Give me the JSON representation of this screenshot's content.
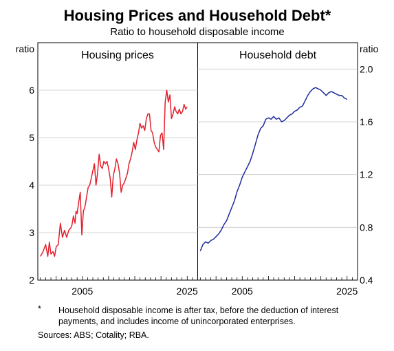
{
  "title": "Housing Prices and Household Debt*",
  "subtitle": "Ratio to household disposable income",
  "footnote_marker": "*",
  "footnote": "Household disposable income is after tax, before the deduction of interest payments, and includes income of unincorporated enterprises.",
  "sources": "Sources: ABS; Cotality; RBA.",
  "chart_data": [
    {
      "type": "line",
      "title": "Housing prices",
      "ylabel": "ratio",
      "ylim": [
        2,
        7
      ],
      "yticks": [
        2,
        3,
        4,
        5,
        6
      ],
      "xlim": [
        1996.5,
        2027.0
      ],
      "xticks": [
        2005,
        2025
      ],
      "color": "#e3202c",
      "x": [
        1997.0,
        1997.5,
        1998.0,
        1998.4,
        1998.7,
        1999.0,
        1999.4,
        1999.7,
        2000.0,
        2000.4,
        2000.8,
        2001.2,
        2001.6,
        2002.0,
        2002.4,
        2002.8,
        2003.0,
        2003.3,
        2003.6,
        2003.8,
        2004.0,
        2004.3,
        2004.6,
        2004.9,
        2005.2,
        2005.5,
        2005.8,
        2006.1,
        2006.4,
        2006.7,
        2007.0,
        2007.3,
        2007.6,
        2007.9,
        2008.2,
        2008.5,
        2008.8,
        2009.1,
        2009.4,
        2009.7,
        2010.0,
        2010.3,
        2010.6,
        2010.9,
        2011.2,
        2011.5,
        2011.8,
        2012.1,
        2012.4,
        2012.7,
        2013.0,
        2013.3,
        2013.6,
        2013.9,
        2014.2,
        2014.5,
        2014.8,
        2015.1,
        2015.4,
        2015.7,
        2016.0,
        2016.3,
        2016.6,
        2016.9,
        2017.2,
        2017.5,
        2017.8,
        2018.1,
        2018.4,
        2018.7,
        2019.0,
        2019.3,
        2019.6,
        2019.9,
        2020.2,
        2020.5,
        2020.8,
        2021.1,
        2021.4,
        2021.7,
        2022.0,
        2022.3,
        2022.6,
        2022.9,
        2023.2,
        2023.5,
        2023.8,
        2024.1,
        2024.4,
        2024.7,
        2025.0
      ],
      "values": [
        2.5,
        2.6,
        2.75,
        2.5,
        2.8,
        2.55,
        2.6,
        2.5,
        2.7,
        2.75,
        3.2,
        2.9,
        3.05,
        2.9,
        3.05,
        3.1,
        3.15,
        3.35,
        3.2,
        3.45,
        3.4,
        3.65,
        3.85,
        2.95,
        3.45,
        3.55,
        3.75,
        3.95,
        4.0,
        4.15,
        4.3,
        4.45,
        4.0,
        4.25,
        4.65,
        4.4,
        4.35,
        4.5,
        4.45,
        4.5,
        4.35,
        4.15,
        3.75,
        4.2,
        4.35,
        4.55,
        4.45,
        4.25,
        3.85,
        4.0,
        4.05,
        4.15,
        4.25,
        4.45,
        4.55,
        4.7,
        4.9,
        4.75,
        4.95,
        5.1,
        5.3,
        5.2,
        5.25,
        5.15,
        5.4,
        5.5,
        5.5,
        5.15,
        5.1,
        4.9,
        4.8,
        4.75,
        4.7,
        5.05,
        5.1,
        4.75,
        5.75,
        6.0,
        5.75,
        5.9,
        5.4,
        5.5,
        5.65,
        5.55,
        5.5,
        5.6,
        5.5,
        5.55,
        5.7,
        5.6,
        5.65
      ]
    },
    {
      "type": "line",
      "title": "Household debt",
      "ylabel": "ratio",
      "ylim": [
        0.4,
        2.2
      ],
      "yticks": [
        0.4,
        0.8,
        1.2,
        1.6,
        2.0
      ],
      "xlim": [
        1996.5,
        2027.0
      ],
      "xticks": [
        2005,
        2025
      ],
      "color": "#1c2d9c",
      "x": [
        1997.0,
        1997.5,
        1998.0,
        1998.5,
        1999.0,
        1999.5,
        2000.0,
        2000.5,
        2001.0,
        2001.5,
        2002.0,
        2002.5,
        2003.0,
        2003.5,
        2004.0,
        2004.5,
        2005.0,
        2005.5,
        2006.0,
        2006.5,
        2007.0,
        2007.5,
        2008.0,
        2008.5,
        2009.0,
        2009.5,
        2010.0,
        2010.5,
        2011.0,
        2011.5,
        2012.0,
        2012.5,
        2013.0,
        2013.5,
        2014.0,
        2014.5,
        2015.0,
        2015.5,
        2016.0,
        2016.5,
        2017.0,
        2017.5,
        2018.0,
        2018.5,
        2019.0,
        2019.5,
        2020.0,
        2020.5,
        2021.0,
        2021.5,
        2022.0,
        2022.5,
        2023.0,
        2023.5,
        2024.0,
        2024.5,
        2025.0
      ],
      "values": [
        0.62,
        0.67,
        0.69,
        0.68,
        0.7,
        0.71,
        0.73,
        0.75,
        0.78,
        0.82,
        0.85,
        0.9,
        0.95,
        1.0,
        1.07,
        1.12,
        1.18,
        1.22,
        1.26,
        1.3,
        1.36,
        1.43,
        1.5,
        1.55,
        1.57,
        1.62,
        1.63,
        1.62,
        1.64,
        1.62,
        1.63,
        1.6,
        1.61,
        1.63,
        1.65,
        1.66,
        1.68,
        1.69,
        1.71,
        1.72,
        1.76,
        1.8,
        1.83,
        1.85,
        1.86,
        1.85,
        1.84,
        1.82,
        1.8,
        1.82,
        1.83,
        1.82,
        1.81,
        1.8,
        1.8,
        1.78,
        1.77
      ]
    }
  ]
}
